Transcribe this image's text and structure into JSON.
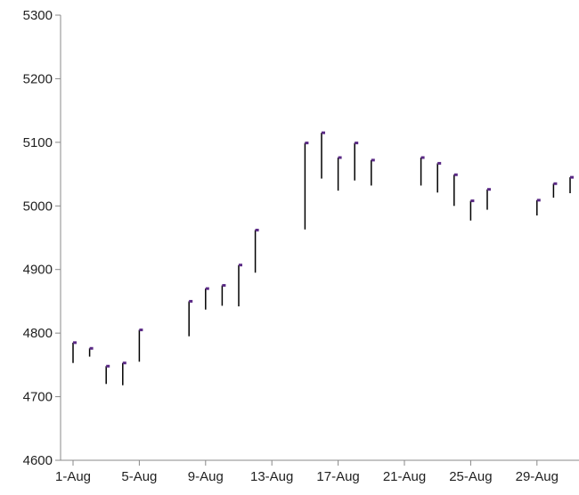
{
  "chart_data": {
    "type": "hlc-stock",
    "title": "",
    "xlabel": "",
    "ylabel": "",
    "ylim": [
      4600,
      5300
    ],
    "yticks": [
      4600,
      4700,
      4800,
      4900,
      5000,
      5100,
      5200,
      5300
    ],
    "x_range": [
      "1-Aug",
      "31-Aug"
    ],
    "xticks": [
      "1-Aug",
      "5-Aug",
      "9-Aug",
      "13-Aug",
      "17-Aug",
      "21-Aug",
      "25-Aug",
      "29-Aug"
    ],
    "grid": false,
    "legend": "none",
    "colors": {
      "range_line": "#000000",
      "close_marker": "#5b2a86"
    },
    "points": [
      {
        "date": "1-Aug",
        "high": 4785,
        "low": 4753,
        "close": 4785
      },
      {
        "date": "2-Aug",
        "high": 4776,
        "low": 4763,
        "close": 4776
      },
      {
        "date": "3-Aug",
        "high": 4748,
        "low": 4720,
        "close": 4748
      },
      {
        "date": "4-Aug",
        "high": 4753,
        "low": 4718,
        "close": 4753
      },
      {
        "date": "5-Aug",
        "high": 4805,
        "low": 4755,
        "close": 4805
      },
      {
        "date": "8-Aug",
        "high": 4850,
        "low": 4795,
        "close": 4850
      },
      {
        "date": "9-Aug",
        "high": 4870,
        "low": 4837,
        "close": 4870
      },
      {
        "date": "10-Aug",
        "high": 4875,
        "low": 4843,
        "close": 4875
      },
      {
        "date": "11-Aug",
        "high": 4907,
        "low": 4842,
        "close": 4907
      },
      {
        "date": "12-Aug",
        "high": 4962,
        "low": 4895,
        "close": 4962
      },
      {
        "date": "15-Aug",
        "high": 5099,
        "low": 4963,
        "close": 5099
      },
      {
        "date": "16-Aug",
        "high": 5115,
        "low": 5043,
        "close": 5115
      },
      {
        "date": "17-Aug",
        "high": 5076,
        "low": 5024,
        "close": 5076
      },
      {
        "date": "18-Aug",
        "high": 5099,
        "low": 5040,
        "close": 5099
      },
      {
        "date": "19-Aug",
        "high": 5072,
        "low": 5032,
        "close": 5072
      },
      {
        "date": "22-Aug",
        "high": 5076,
        "low": 5032,
        "close": 5076
      },
      {
        "date": "23-Aug",
        "high": 5067,
        "low": 5021,
        "close": 5067
      },
      {
        "date": "24-Aug",
        "high": 5049,
        "low": 5000,
        "close": 5049
      },
      {
        "date": "25-Aug",
        "high": 5008,
        "low": 4977,
        "close": 5008
      },
      {
        "date": "26-Aug",
        "high": 5026,
        "low": 4994,
        "close": 5026
      },
      {
        "date": "29-Aug",
        "high": 5009,
        "low": 4985,
        "close": 5009
      },
      {
        "date": "30-Aug",
        "high": 5035,
        "low": 5013,
        "close": 5035
      },
      {
        "date": "31-Aug",
        "high": 5045,
        "low": 5020,
        "close": 5045
      }
    ]
  }
}
